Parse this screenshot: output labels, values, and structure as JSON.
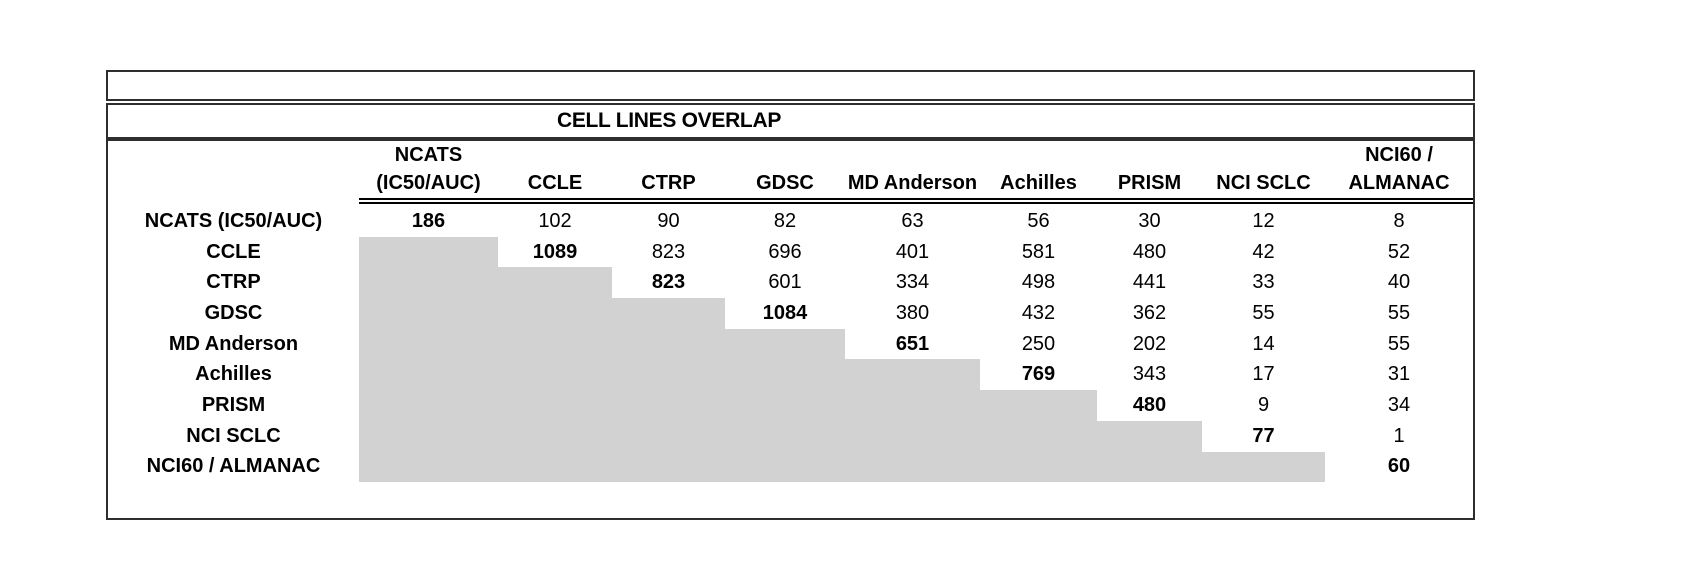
{
  "title": "CELL LINES OVERLAP",
  "table": {
    "column_headers": [
      [
        "NCATS",
        "(IC50/AUC)"
      ],
      [
        "CCLE"
      ],
      [
        "CTRP"
      ],
      [
        "GDSC"
      ],
      [
        "MD Anderson"
      ],
      [
        "Achilles"
      ],
      [
        "PRISM"
      ],
      [
        "NCI SCLC"
      ],
      [
        "NCI60 /",
        "ALMANAC"
      ]
    ],
    "row_labels": [
      "NCATS (IC50/AUC)",
      "CCLE",
      "CTRP",
      "GDSC",
      "MD Anderson",
      "Achilles",
      "PRISM",
      "NCI SCLC",
      "NCI60 / ALMANAC"
    ],
    "matrix": [
      [
        186,
        102,
        90,
        82,
        63,
        56,
        30,
        12,
        8
      ],
      [
        null,
        1089,
        823,
        696,
        401,
        581,
        480,
        42,
        52
      ],
      [
        null,
        null,
        823,
        601,
        334,
        498,
        441,
        33,
        40
      ],
      [
        null,
        null,
        null,
        1084,
        380,
        432,
        362,
        55,
        55
      ],
      [
        null,
        null,
        null,
        null,
        651,
        250,
        202,
        14,
        55
      ],
      [
        null,
        null,
        null,
        null,
        null,
        769,
        343,
        17,
        31
      ],
      [
        null,
        null,
        null,
        null,
        null,
        null,
        480,
        9,
        34
      ],
      [
        null,
        null,
        null,
        null,
        null,
        null,
        null,
        77,
        1
      ],
      [
        null,
        null,
        null,
        null,
        null,
        null,
        null,
        null,
        60
      ]
    ],
    "diagonal_bold": true,
    "lower_triangle_shaded": true
  },
  "colors": {
    "shade": "#d2d2d2",
    "border": "#2e2e2e",
    "rule": "#000000",
    "text": "#000000"
  }
}
